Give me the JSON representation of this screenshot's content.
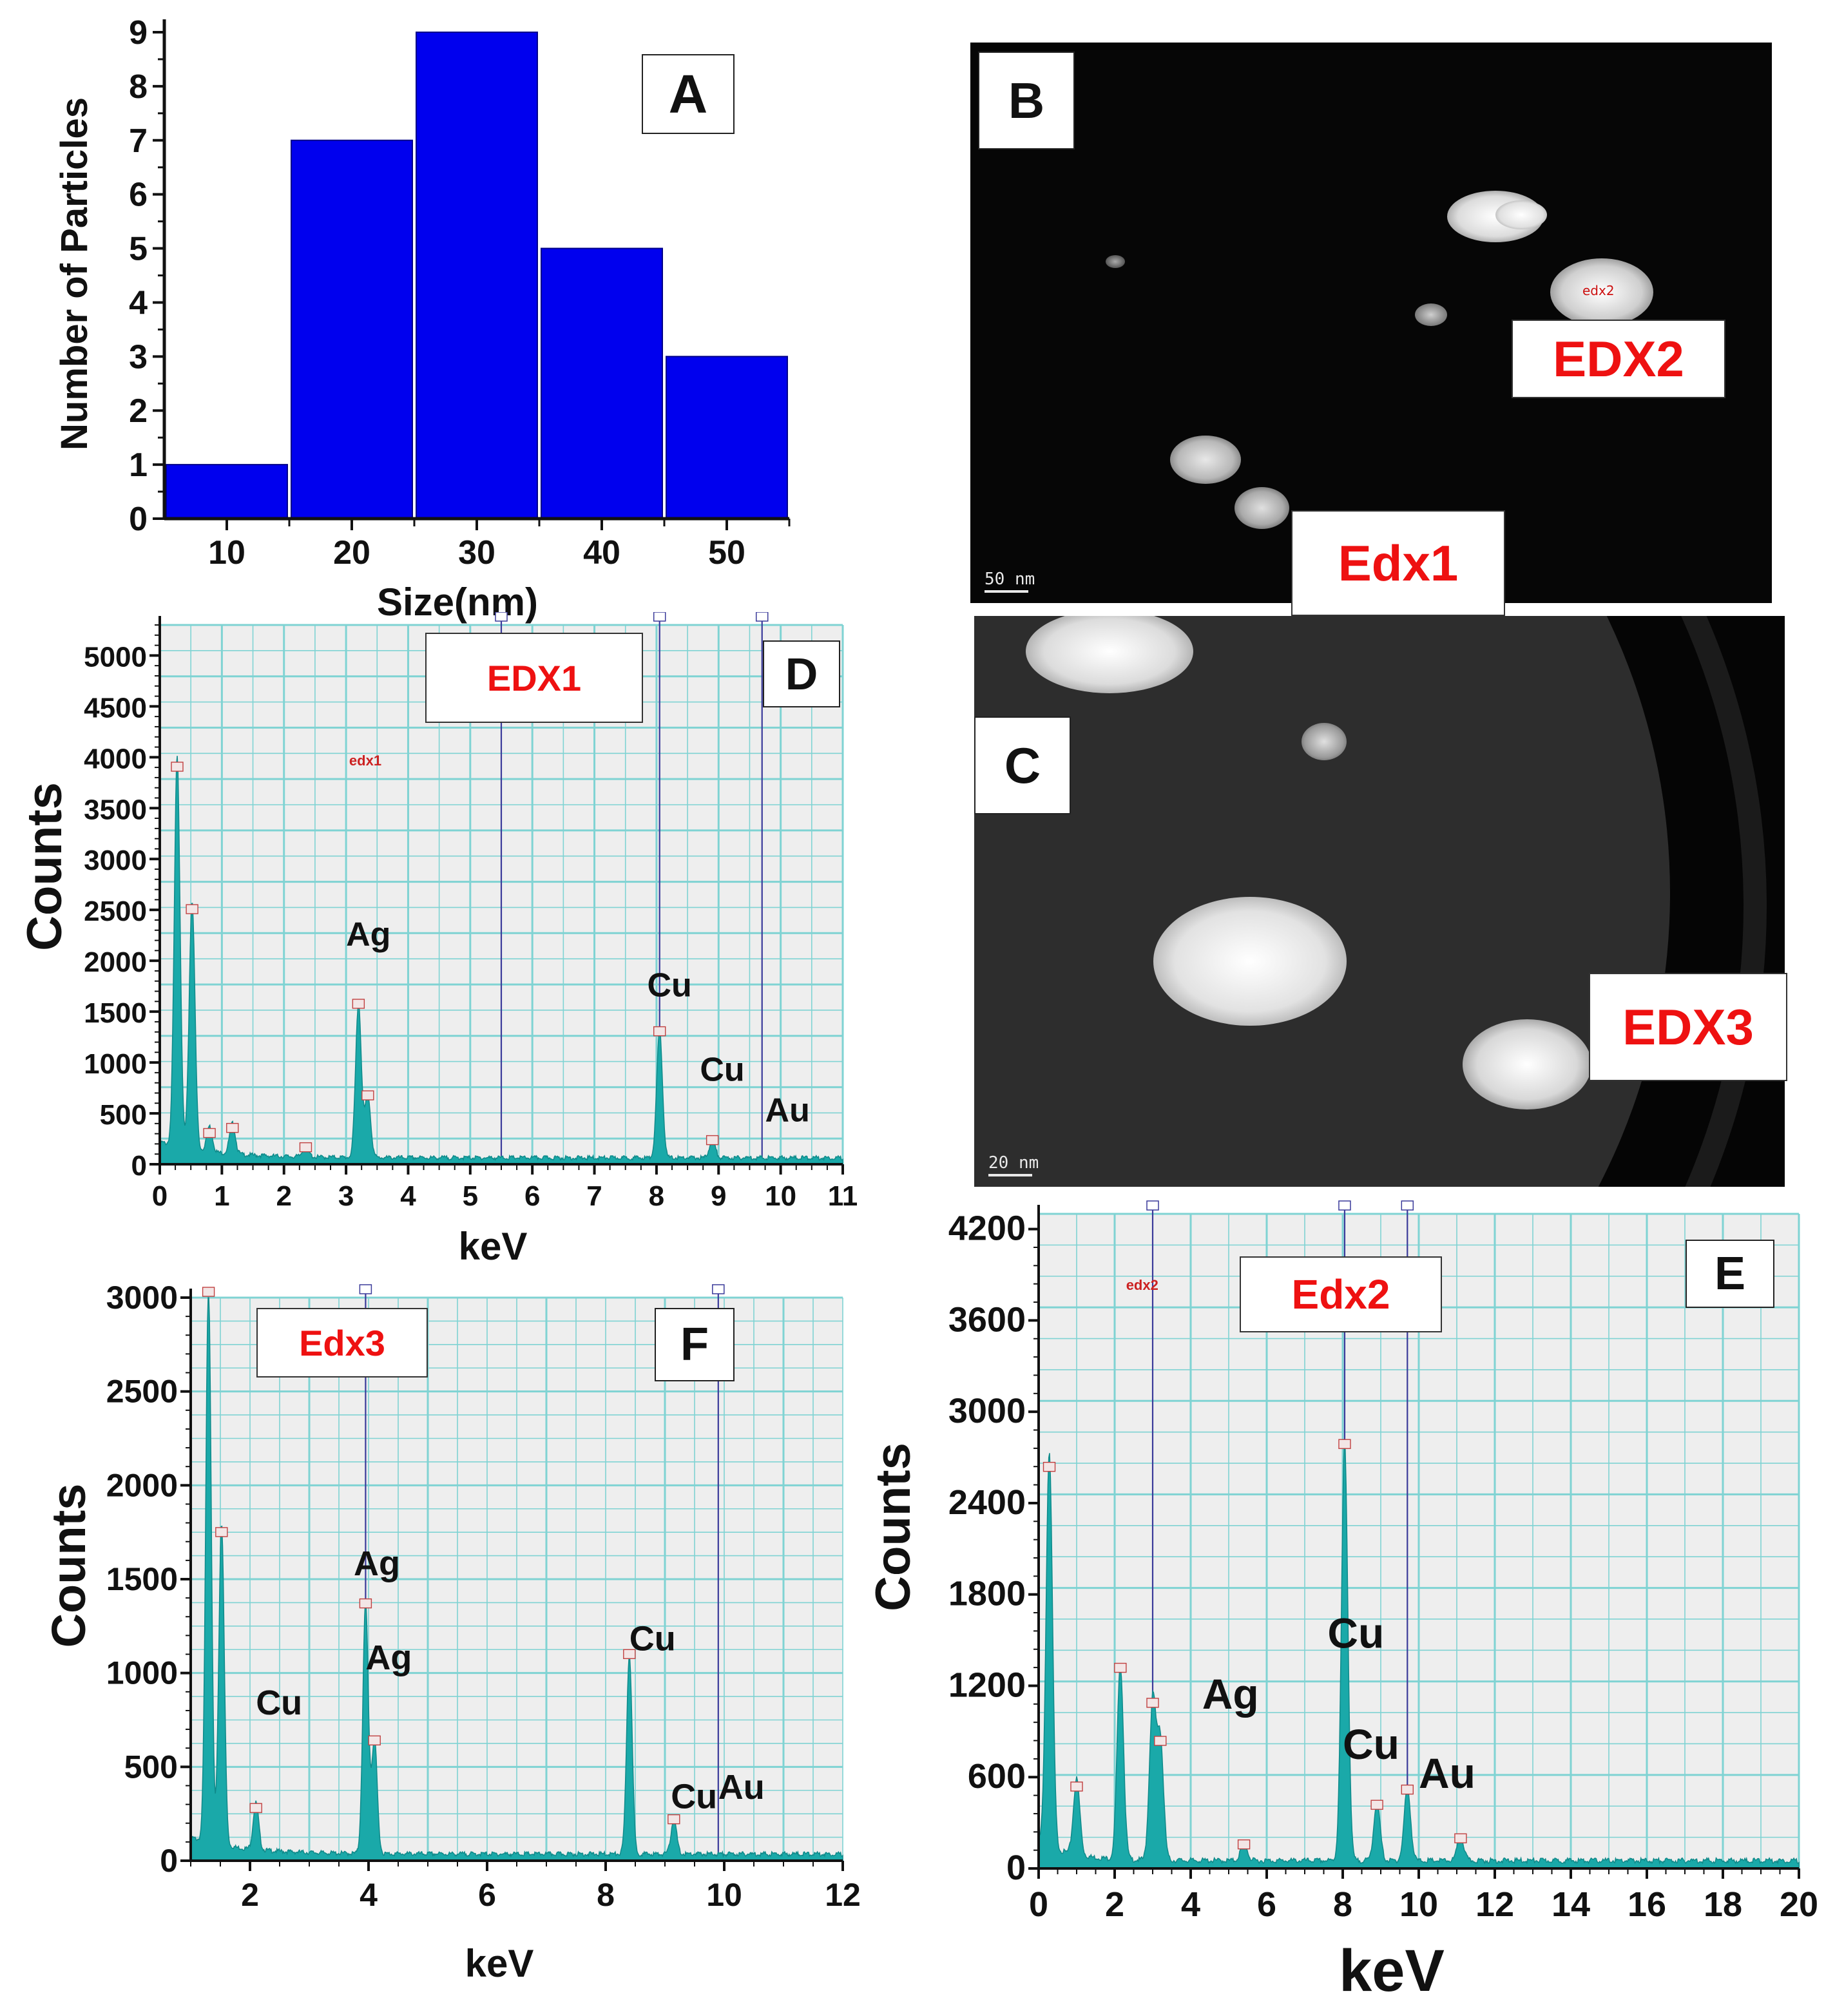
{
  "chart_data": [
    {
      "panel": "A",
      "type": "bar",
      "categories": [
        "10",
        "20",
        "30",
        "40",
        "50"
      ],
      "values": [
        1,
        7,
        9,
        5,
        3
      ],
      "title": "",
      "xlabel": "Size(nm)",
      "ylabel": "Number of Particles",
      "ylim": [
        0,
        9
      ],
      "yticks": [
        "0",
        "1",
        "2",
        "3",
        "4",
        "5",
        "6",
        "7",
        "8",
        "9"
      ],
      "bar_color": "#0000ee"
    },
    {
      "panel": "D",
      "type": "line",
      "title": "EDX1",
      "xlabel": "keV",
      "ylabel": "Counts",
      "xlim": [
        0,
        11
      ],
      "ylim": [
        0,
        5300
      ],
      "xticks": [
        "0",
        "1",
        "2",
        "3",
        "4",
        "5",
        "6",
        "7",
        "8",
        "9",
        "10",
        "11"
      ],
      "yticks": [
        "0",
        "500",
        "1000",
        "1500",
        "2000",
        "2500",
        "3000",
        "3500",
        "4000",
        "4500",
        "5000"
      ],
      "peaks": [
        {
          "x": 0.28,
          "y": 3850
        },
        {
          "x": 0.52,
          "y": 2450
        },
        {
          "x": 0.8,
          "y": 250
        },
        {
          "x": 1.17,
          "y": 300
        },
        {
          "x": 2.35,
          "y": 110
        },
        {
          "x": 3.2,
          "y": 1520
        },
        {
          "x": 3.35,
          "y": 620
        },
        {
          "x": 8.05,
          "y": 1250
        },
        {
          "x": 8.9,
          "y": 180
        }
      ],
      "annotations": [
        {
          "text": "Ag",
          "x": 3.0,
          "y": 2150
        },
        {
          "text": "Cu",
          "x": 7.85,
          "y": 1650
        },
        {
          "text": "Cu",
          "x": 8.7,
          "y": 820
        },
        {
          "text": "Au",
          "x": 9.75,
          "y": 420
        }
      ],
      "marker_lines": [
        5.5,
        8.05,
        9.7
      ]
    },
    {
      "panel": "F",
      "type": "line",
      "title": "Edx3",
      "xlabel": "keV",
      "ylabel": "Counts",
      "xlim": [
        1,
        12
      ],
      "ylim": [
        0,
        3000
      ],
      "xticks": [
        "2",
        "4",
        "6",
        "8",
        "10",
        "12"
      ],
      "yticks": [
        "0",
        "500",
        "1000",
        "1500",
        "2000",
        "2500",
        "3000"
      ],
      "peaks": [
        {
          "x": 1.3,
          "y": 3000
        },
        {
          "x": 1.52,
          "y": 1720
        },
        {
          "x": 2.1,
          "y": 250
        },
        {
          "x": 3.95,
          "y": 1340
        },
        {
          "x": 4.1,
          "y": 610
        },
        {
          "x": 8.4,
          "y": 1070
        },
        {
          "x": 9.15,
          "y": 190
        }
      ],
      "annotations": [
        {
          "text": "Cu",
          "x": 2.1,
          "y": 780
        },
        {
          "text": "Ag",
          "x": 3.75,
          "y": 1520
        },
        {
          "text": "Ag",
          "x": 3.95,
          "y": 1020
        },
        {
          "text": "Cu",
          "x": 8.4,
          "y": 1120
        },
        {
          "text": "Cu",
          "x": 9.1,
          "y": 280
        },
        {
          "text": "Au",
          "x": 9.9,
          "y": 330
        }
      ],
      "marker_lines": [
        3.95,
        9.9
      ]
    },
    {
      "panel": "E",
      "type": "line",
      "title": "Edx2",
      "xlabel": "keV",
      "ylabel": "Counts",
      "xlim": [
        0,
        20
      ],
      "ylim": [
        0,
        4300
      ],
      "xticks": [
        "0",
        "2",
        "4",
        "6",
        "8",
        "10",
        "12",
        "14",
        "16",
        "18",
        "20"
      ],
      "yticks": [
        "0",
        "600",
        "1200",
        "1800",
        "2400",
        "3000",
        "3600",
        "4200"
      ],
      "peaks": [
        {
          "x": 0.28,
          "y": 2600
        },
        {
          "x": 1.0,
          "y": 500
        },
        {
          "x": 2.15,
          "y": 1280
        },
        {
          "x": 3.0,
          "y": 1050
        },
        {
          "x": 3.2,
          "y": 800
        },
        {
          "x": 5.4,
          "y": 120
        },
        {
          "x": 8.05,
          "y": 2750
        },
        {
          "x": 8.9,
          "y": 380
        },
        {
          "x": 9.7,
          "y": 480
        },
        {
          "x": 11.1,
          "y": 160
        }
      ],
      "annotations": [
        {
          "text": "Ag",
          "x": 4.3,
          "y": 1050
        },
        {
          "text": "Cu",
          "x": 7.6,
          "y": 1450
        },
        {
          "text": "Cu",
          "x": 8.0,
          "y": 720
        },
        {
          "text": "Au",
          "x": 10.0,
          "y": 530
        }
      ],
      "marker_lines": [
        3.0,
        8.05,
        9.7
      ]
    }
  ],
  "micrographs": [
    {
      "panel": "B",
      "tag": "EDX2",
      "tag2": "Edx1",
      "inline_label": "edx2",
      "scale": "50 nm"
    },
    {
      "panel": "C",
      "tag": "EDX3",
      "scale": "20 nm"
    }
  ],
  "panel_letters": {
    "A": "A",
    "B": "B",
    "C": "C",
    "D": "D",
    "E": "E",
    "F": "F"
  },
  "peak_tags": {
    "edx1": "edx1",
    "edx2": "edx2"
  },
  "colors": {
    "bar": "#0000ee",
    "spectrum": "#1aa9a9",
    "grid": "#7fd3d3",
    "panel_bg": "#eeeeee",
    "label_red": "#ee1111"
  }
}
